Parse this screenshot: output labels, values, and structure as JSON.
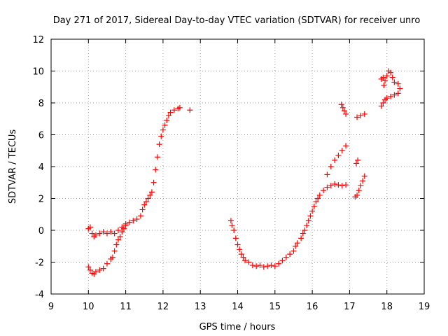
{
  "chart_data": {
    "type": "scatter",
    "title": "Day 271 of 2017, Sidereal Day-to-day VTEC variation (SDTVAR) for receiver unro",
    "xlabel": "GPS time / hours",
    "ylabel": "SDTVAR / TECUs",
    "xlim": [
      9,
      19
    ],
    "ylim": [
      -4,
      12
    ],
    "xticks": [
      "9",
      "10",
      "11",
      "12",
      "13",
      "14",
      "15",
      "16",
      "17",
      "18",
      "19"
    ],
    "yticks": [
      "-4",
      "-2",
      "0",
      "2",
      "4",
      "6",
      "8",
      "10",
      "12"
    ],
    "grid": true,
    "marker": "+",
    "color": "#ff0000",
    "series": [
      {
        "name": "SDTVAR",
        "points": [
          [
            10.0,
            0.1
          ],
          [
            10.05,
            0.2
          ],
          [
            10.1,
            -0.2
          ],
          [
            10.15,
            -0.4
          ],
          [
            10.2,
            -0.3
          ],
          [
            10.3,
            -0.2
          ],
          [
            10.4,
            -0.1
          ],
          [
            10.5,
            -0.2
          ],
          [
            10.6,
            -0.1
          ],
          [
            10.7,
            -0.2
          ],
          [
            10.8,
            0.0
          ],
          [
            10.9,
            0.2
          ],
          [
            11.0,
            0.4
          ],
          [
            11.1,
            0.5
          ],
          [
            11.2,
            0.6
          ],
          [
            11.3,
            0.7
          ],
          [
            11.4,
            0.9
          ],
          [
            11.45,
            1.3
          ],
          [
            11.5,
            1.6
          ],
          [
            11.55,
            1.8
          ],
          [
            11.6,
            2.0
          ],
          [
            11.65,
            2.2
          ],
          [
            11.7,
            2.4
          ],
          [
            11.75,
            3.0
          ],
          [
            11.8,
            3.8
          ],
          [
            11.85,
            4.6
          ],
          [
            11.9,
            5.4
          ],
          [
            11.95,
            5.9
          ],
          [
            12.0,
            6.3
          ],
          [
            12.05,
            6.6
          ],
          [
            12.1,
            6.9
          ],
          [
            12.15,
            7.2
          ],
          [
            12.2,
            7.4
          ],
          [
            12.3,
            7.55
          ],
          [
            12.4,
            7.65
          ],
          [
            12.45,
            7.7
          ],
          [
            12.72,
            7.55
          ],
          [
            10.0,
            -2.3
          ],
          [
            10.05,
            -2.5
          ],
          [
            10.1,
            -2.7
          ],
          [
            10.15,
            -2.75
          ],
          [
            10.2,
            -2.6
          ],
          [
            10.3,
            -2.5
          ],
          [
            10.4,
            -2.4
          ],
          [
            10.5,
            -2.1
          ],
          [
            10.6,
            -1.8
          ],
          [
            10.65,
            -1.7
          ],
          [
            10.7,
            -1.3
          ],
          [
            10.75,
            -0.9
          ],
          [
            10.8,
            -0.6
          ],
          [
            10.85,
            -0.4
          ],
          [
            10.9,
            -0.1
          ],
          [
            10.95,
            0.1
          ],
          [
            11.0,
            0.3
          ],
          [
            13.82,
            0.6
          ],
          [
            13.85,
            0.3
          ],
          [
            13.9,
            0.0
          ],
          [
            13.95,
            -0.5
          ],
          [
            14.0,
            -0.9
          ],
          [
            14.05,
            -1.2
          ],
          [
            14.1,
            -1.5
          ],
          [
            14.15,
            -1.7
          ],
          [
            14.2,
            -1.9
          ],
          [
            14.3,
            -2.0
          ],
          [
            14.4,
            -2.2
          ],
          [
            14.5,
            -2.25
          ],
          [
            14.6,
            -2.2
          ],
          [
            14.7,
            -2.3
          ],
          [
            14.8,
            -2.25
          ],
          [
            14.9,
            -2.2
          ],
          [
            15.0,
            -2.25
          ],
          [
            15.1,
            -2.1
          ],
          [
            15.2,
            -1.9
          ],
          [
            15.3,
            -1.7
          ],
          [
            15.4,
            -1.5
          ],
          [
            15.5,
            -1.3
          ],
          [
            15.55,
            -1.0
          ],
          [
            15.6,
            -0.8
          ],
          [
            15.7,
            -0.5
          ],
          [
            15.75,
            -0.2
          ],
          [
            15.8,
            0.0
          ],
          [
            15.85,
            0.3
          ],
          [
            15.9,
            0.6
          ],
          [
            15.95,
            0.9
          ],
          [
            16.0,
            1.2
          ],
          [
            16.05,
            1.5
          ],
          [
            16.1,
            1.8
          ],
          [
            16.15,
            2.0
          ],
          [
            16.2,
            2.2
          ],
          [
            16.3,
            2.5
          ],
          [
            16.4,
            2.7
          ],
          [
            16.5,
            2.8
          ],
          [
            16.6,
            2.9
          ],
          [
            16.7,
            2.85
          ],
          [
            16.8,
            2.8
          ],
          [
            16.9,
            2.85
          ],
          [
            16.4,
            3.5
          ],
          [
            16.5,
            4.0
          ],
          [
            16.6,
            4.4
          ],
          [
            16.7,
            4.7
          ],
          [
            16.8,
            5.0
          ],
          [
            16.9,
            5.3
          ],
          [
            16.78,
            7.9
          ],
          [
            16.82,
            7.7
          ],
          [
            16.86,
            7.5
          ],
          [
            16.9,
            7.3
          ],
          [
            17.18,
            4.2
          ],
          [
            17.22,
            4.4
          ],
          [
            17.15,
            2.1
          ],
          [
            17.2,
            2.2
          ],
          [
            17.25,
            2.5
          ],
          [
            17.3,
            2.8
          ],
          [
            17.35,
            3.1
          ],
          [
            17.4,
            3.4
          ],
          [
            17.2,
            7.1
          ],
          [
            17.3,
            7.2
          ],
          [
            17.4,
            7.3
          ],
          [
            17.85,
            7.8
          ],
          [
            17.9,
            8.0
          ],
          [
            17.95,
            8.2
          ],
          [
            18.0,
            8.3
          ],
          [
            18.1,
            8.4
          ],
          [
            18.2,
            8.5
          ],
          [
            18.3,
            8.6
          ],
          [
            17.9,
            9.6
          ],
          [
            17.95,
            9.4
          ],
          [
            18.0,
            9.7
          ],
          [
            18.05,
            10.0
          ],
          [
            18.1,
            9.9
          ],
          [
            18.15,
            9.6
          ],
          [
            18.2,
            9.3
          ],
          [
            18.3,
            9.2
          ],
          [
            18.35,
            8.9
          ],
          [
            17.85,
            9.5
          ],
          [
            17.92,
            9.1
          ]
        ]
      }
    ]
  }
}
